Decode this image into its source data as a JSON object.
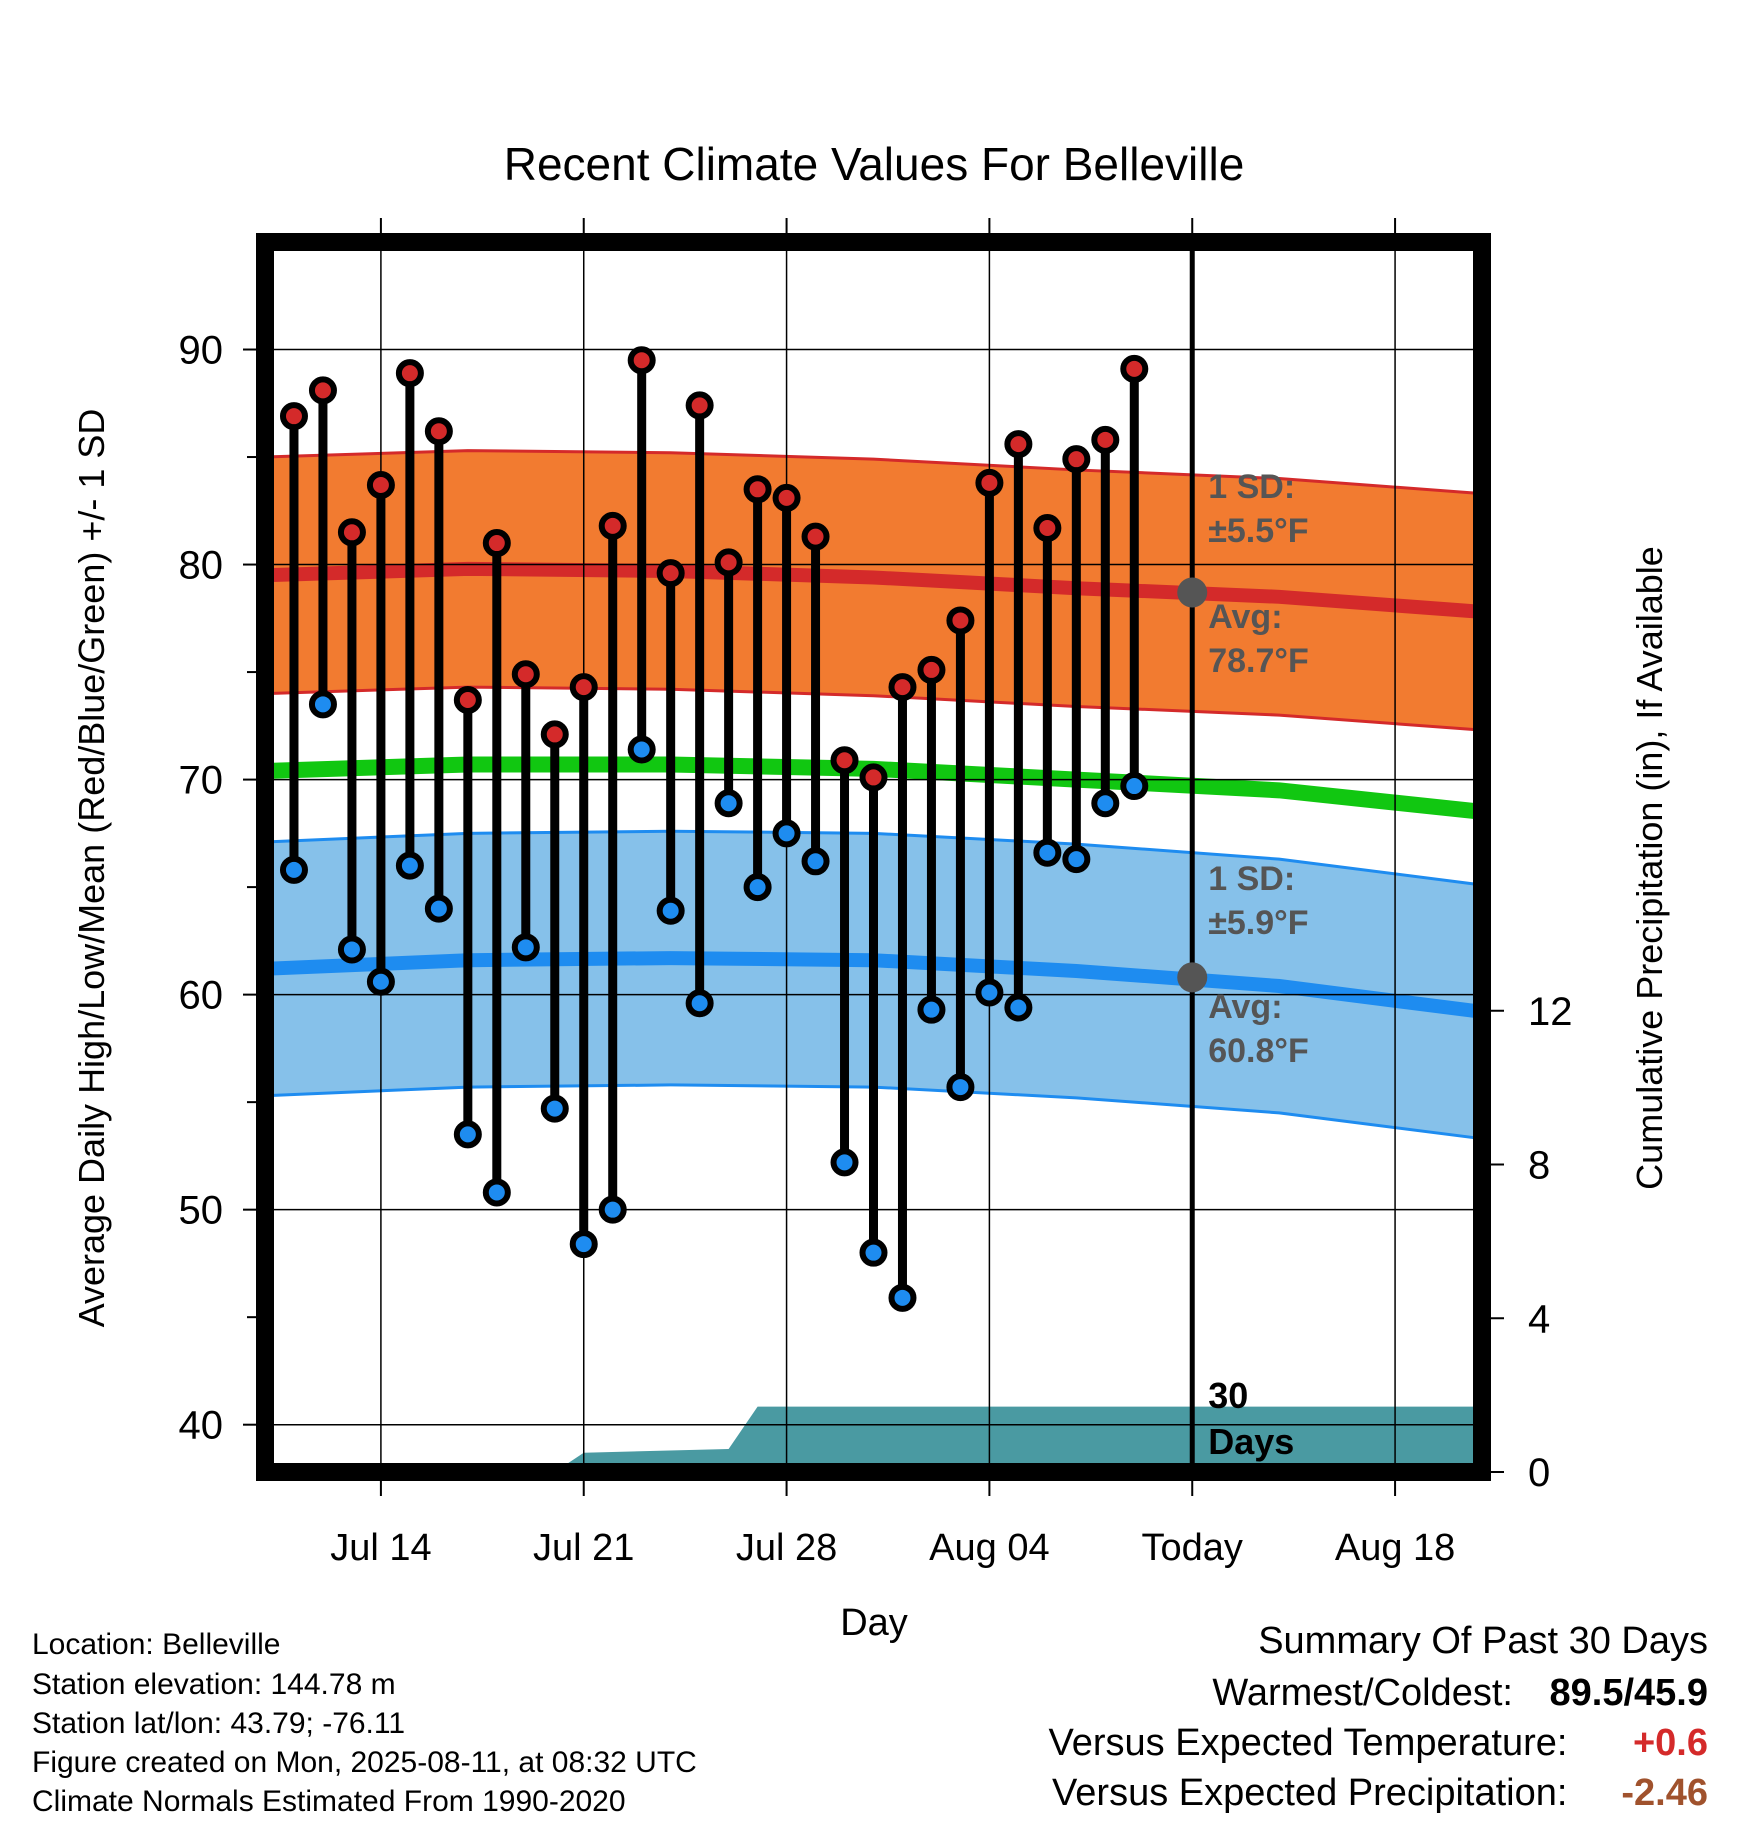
{
  "chart_data": {
    "type": "line",
    "title": "Recent Climate Values For Belleville",
    "xlabel": "Day",
    "ylabel": "Average Daily High/Low/Mean (Red/Blue/Green) +/- 1 SD",
    "y2label": "Cumulative Precipitation (in), If Available",
    "x_ticks": [
      "Jul 14",
      "Jul 21",
      "Jul 28",
      "Aug 04",
      "Today",
      "Aug 18"
    ],
    "x_range": [
      "2025-07-10",
      "2025-08-21"
    ],
    "ylim": [
      37.8,
      95
    ],
    "y_ticks": [
      40,
      50,
      60,
      70,
      80,
      90
    ],
    "y2lim": [
      0,
      32
    ],
    "y2_ticks": [
      0,
      4,
      8,
      12
    ],
    "grid": true,
    "today": "2025-08-11",
    "days": [
      "2025-07-11",
      "2025-07-12",
      "2025-07-13",
      "2025-07-14",
      "2025-07-15",
      "2025-07-16",
      "2025-07-17",
      "2025-07-18",
      "2025-07-19",
      "2025-07-20",
      "2025-07-21",
      "2025-07-22",
      "2025-07-23",
      "2025-07-24",
      "2025-07-25",
      "2025-07-26",
      "2025-07-27",
      "2025-07-28",
      "2025-07-29",
      "2025-07-30",
      "2025-07-31",
      "2025-08-01",
      "2025-08-02",
      "2025-08-03",
      "2025-08-04",
      "2025-08-05",
      "2025-08-06",
      "2025-08-07",
      "2025-08-08",
      "2025-08-09",
      "2025-08-10"
    ],
    "series": [
      {
        "name": "High",
        "color": "#d42a2a",
        "values": [
          86.9,
          88.1,
          81.5,
          83.7,
          88.9,
          86.2,
          73.7,
          81.0,
          74.9,
          72.1,
          74.3,
          81.8,
          89.5,
          79.6,
          87.4,
          80.1,
          83.5,
          83.1,
          81.3,
          70.9,
          70.1,
          74.3,
          75.1,
          77.4,
          83.8,
          85.6,
          81.7,
          84.9,
          85.8,
          89.1,
          null
        ]
      },
      {
        "name": "Low",
        "color": "#1e8cf0",
        "values": [
          65.8,
          73.5,
          62.1,
          60.6,
          66.0,
          64.0,
          53.5,
          50.8,
          62.2,
          54.7,
          48.4,
          50.0,
          71.4,
          63.9,
          59.6,
          68.9,
          65.0,
          67.5,
          66.2,
          52.2,
          48.0,
          45.9,
          59.3,
          55.7,
          60.1,
          59.4,
          66.6,
          66.3,
          68.9,
          69.7,
          null
        ]
      }
    ],
    "normals": {
      "x": [
        "2025-07-10",
        "2025-07-17",
        "2025-07-24",
        "2025-07-31",
        "2025-08-07",
        "2025-08-14",
        "2025-08-21"
      ],
      "high_avg": [
        79.5,
        79.8,
        79.7,
        79.4,
        78.9,
        78.5,
        77.8
      ],
      "high_sd": 5.5,
      "low_avg": [
        61.2,
        61.6,
        61.7,
        61.6,
        61.1,
        60.4,
        59.2
      ],
      "low_sd": 5.9,
      "mean_avg": [
        70.4,
        70.7,
        70.7,
        70.5,
        70.0,
        69.5,
        68.5
      ]
    },
    "precip": {
      "x": [
        "2025-07-10",
        "2025-07-20",
        "2025-07-21",
        "2025-07-26",
        "2025-07-27",
        "2025-08-21"
      ],
      "values": [
        0,
        0,
        0.5,
        0.6,
        1.7,
        1.7
      ]
    },
    "annotations": {
      "high_sd": "1 SD:",
      "high_sd_val": "±5.5°F",
      "high_avg": "Avg:",
      "high_avg_val": "78.7°F",
      "low_sd": "1 SD:",
      "low_sd_val": "±5.9°F",
      "low_avg": "Avg:",
      "low_avg_val": "60.8°F",
      "window_num": "30",
      "window_unit": "Days"
    }
  },
  "footer": {
    "location": "Location: Belleville",
    "elevation": "Station elevation: 144.78 m",
    "latlon": "Station lat/lon: 43.79; -76.11",
    "created": "Figure created on Mon, 2025-08-11, at 08:32 UTC",
    "normals": "Climate Normals Estimated From 1990-2020"
  },
  "summary": {
    "title": "Summary Of Past 30 Days",
    "warm_cold_label": "Warmest/Coldest:",
    "warm_cold_value": "89.5/45.9",
    "temp_label": "Versus Expected Temperature:",
    "temp_value": "+0.6",
    "temp_color": "#d42a2a",
    "precip_label": "Versus Expected Precipitation:",
    "precip_value": "-2.46",
    "precip_color": "#a0522d"
  }
}
